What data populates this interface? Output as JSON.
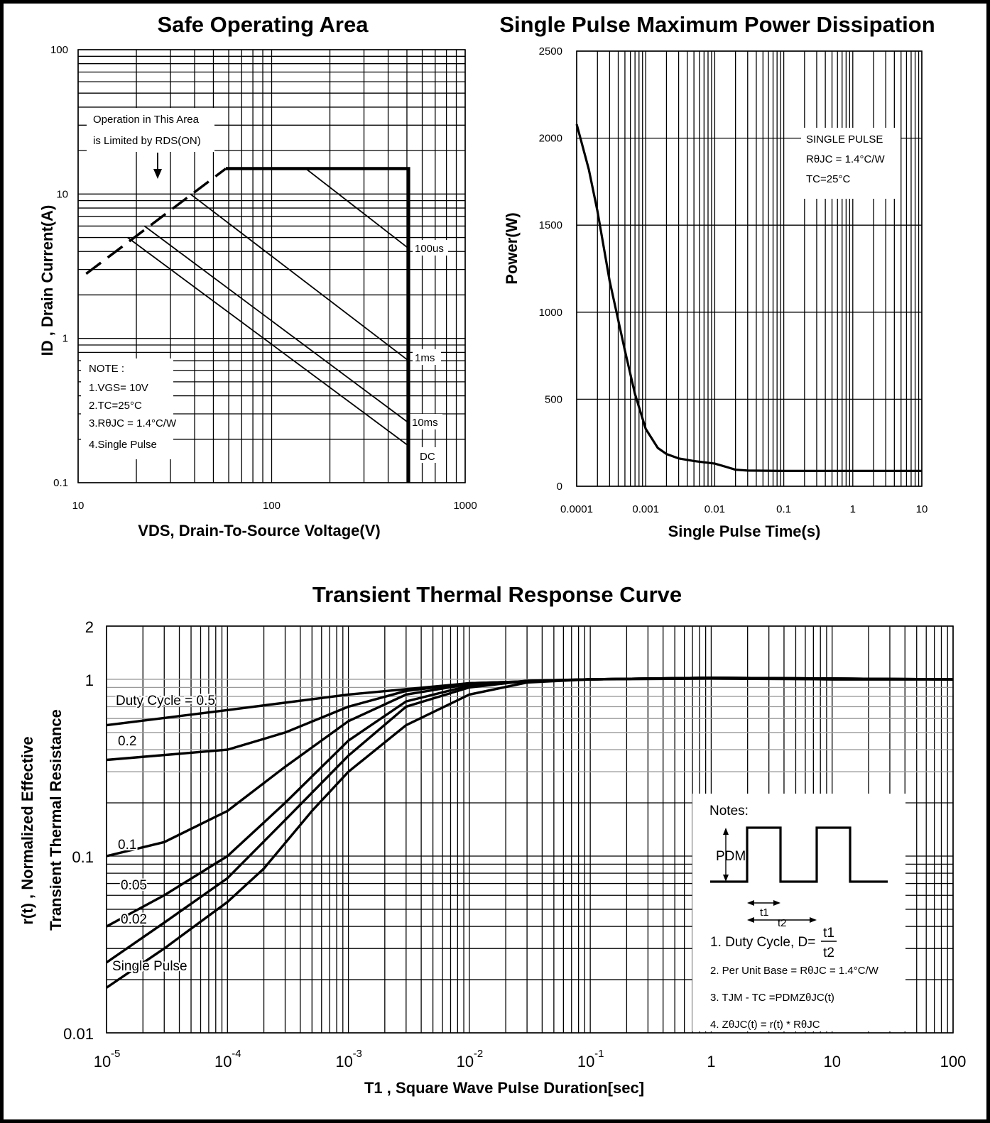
{
  "chart_data": [
    {
      "type": "line",
      "title": "Safe Operating Area",
      "xlabel": "VDS, Drain-To-Source Voltage(V)",
      "ylabel": "ID , Drain Current(A)",
      "xscale": "log",
      "yscale": "log",
      "xlim": [
        10,
        1000
      ],
      "ylim": [
        0.1,
        100
      ],
      "xticks": [
        "10",
        "100",
        "1000"
      ],
      "yticks": [
        "0.1",
        "1",
        "10",
        "100"
      ],
      "grid": true,
      "series": [
        {
          "name": "Operation in This Area is Limited by RDS(ON)",
          "style": "dashed",
          "x": [
            11,
            58
          ],
          "y": [
            2.8,
            15
          ]
        },
        {
          "name": "",
          "style": "bold",
          "x": [
            58,
            510,
            510
          ],
          "y": [
            15,
            15,
            0.1
          ]
        },
        {
          "name": "100us",
          "x": [
            150,
            510
          ],
          "y": [
            15,
            4.2
          ]
        },
        {
          "name": "1ms",
          "x": [
            38,
            510
          ],
          "y": [
            10.0,
            0.7
          ]
        },
        {
          "name": "10ms",
          "x": [
            22,
            510
          ],
          "y": [
            6.0,
            0.26
          ]
        },
        {
          "name": "DC",
          "x": [
            18,
            510
          ],
          "y": [
            5.0,
            0.18
          ]
        }
      ],
      "annotations": [
        "Operation in This Area",
        "is Limited by RDS(ON)",
        "100us",
        "1ms",
        "10ms",
        "DC",
        "NOTE :",
        "1.VGS= 10V",
        "2.TC=25°C",
        "3.RθJC = 1.4°C/W",
        "4.Single Pulse"
      ]
    },
    {
      "type": "line",
      "title": "Single Pulse Maximum Power Dissipation",
      "xlabel": "Single Pulse Time(s)",
      "ylabel": "Power(W)",
      "xscale": "log",
      "xlim": [
        0.0001,
        10
      ],
      "ylim": [
        0,
        2500
      ],
      "xticks": [
        "0.0001",
        "0.001",
        "0.01",
        "0.1",
        "1",
        "10"
      ],
      "yticks": [
        "0",
        "500",
        "1000",
        "1500",
        "2000",
        "2500"
      ],
      "grid": true,
      "series": [
        {
          "name": "",
          "x": [
            0.0001,
            0.00015,
            0.0002,
            0.0003,
            0.0005,
            0.0007,
            0.001,
            0.0015,
            0.002,
            0.003,
            0.005,
            0.008,
            0.01,
            0.015,
            0.02,
            0.03,
            0.1,
            1,
            10
          ],
          "y": [
            2080,
            1820,
            1580,
            1180,
            780,
            530,
            330,
            220,
            185,
            160,
            145,
            135,
            130,
            110,
            95,
            90,
            88,
            88,
            88
          ]
        }
      ],
      "annotations": [
        "SINGLE PULSE",
        "RθJC = 1.4°C/W",
        "TC=25°C"
      ]
    },
    {
      "type": "line",
      "title": "Transient Thermal Response Curve",
      "xlabel": "T1 , Square Wave Pulse Duration[sec]",
      "ylabel_lines": [
        "r(t) , Normalized Effective",
        "Transient Thermal Resistance"
      ],
      "xscale": "log",
      "yscale": "log",
      "xlim": [
        1e-05,
        100
      ],
      "ylim": [
        0.01,
        2
      ],
      "xticks": [
        "10",
        "10",
        "10",
        "10",
        "10",
        "1",
        "10",
        "100"
      ],
      "xtick_exponents": [
        "-5",
        "-4",
        "-3",
        "-2",
        "-1",
        "",
        "",
        ""
      ],
      "yticks": [
        "0.01",
        "0.1",
        "1",
        "2"
      ],
      "grid": true,
      "series": [
        {
          "name": "Duty Cycle = 0.5",
          "x": [
            1e-05,
            0.0001,
            0.001,
            0.01,
            0.1,
            1,
            10,
            100
          ],
          "y": [
            0.55,
            0.67,
            0.82,
            0.95,
            1.0,
            1.02,
            1.0,
            1.0
          ]
        },
        {
          "name": "0.2",
          "x": [
            1e-05,
            0.0001,
            0.0003,
            0.001,
            0.003,
            0.01,
            0.1,
            1,
            10,
            100
          ],
          "y": [
            0.35,
            0.4,
            0.5,
            0.7,
            0.86,
            0.95,
            1.0,
            1.01,
            1.0,
            1.0
          ]
        },
        {
          "name": "0.1",
          "x": [
            1e-05,
            3e-05,
            0.0001,
            0.0003,
            0.001,
            0.003,
            0.01,
            0.1,
            1,
            100
          ],
          "y": [
            0.1,
            0.12,
            0.18,
            0.32,
            0.58,
            0.82,
            0.94,
            1.0,
            1.02,
            1.0
          ]
        },
        {
          "name": "0.05",
          "x": [
            1e-05,
            3e-05,
            0.0001,
            0.0003,
            0.001,
            0.003,
            0.01,
            0.03,
            0.1,
            1,
            100
          ],
          "y": [
            0.04,
            0.06,
            0.1,
            0.2,
            0.45,
            0.75,
            0.92,
            0.98,
            1.0,
            1.02,
            1.0
          ]
        },
        {
          "name": "0.02",
          "x": [
            1e-05,
            3e-05,
            0.0001,
            0.0003,
            0.001,
            0.003,
            0.01,
            0.03,
            0.1,
            1,
            100
          ],
          "y": [
            0.025,
            0.042,
            0.075,
            0.16,
            0.37,
            0.7,
            0.9,
            0.98,
            1.0,
            1.02,
            1.0
          ]
        },
        {
          "name": "Single Pulse",
          "x": [
            1e-05,
            3e-05,
            0.0001,
            0.0002,
            0.0005,
            0.001,
            0.003,
            0.01,
            0.03,
            0.1,
            1,
            100
          ],
          "y": [
            0.018,
            0.03,
            0.055,
            0.085,
            0.18,
            0.3,
            0.55,
            0.82,
            0.96,
            1.0,
            1.02,
            1.0
          ]
        }
      ],
      "notes": {
        "heading": "Notes:",
        "pdm_label": "PDM",
        "t1_label": "t1",
        "t2_label": "t2",
        "item1": "1. Duty Cycle, D=",
        "frac_num": "t1",
        "frac_den": "t2",
        "item2": "2. Per Unit Base = RθJC = 1.4°C/W",
        "item3": "3. TJM - TC =PDMZθJC(t)",
        "item4": "4. ZθJC(t) = r(t) * RθJC"
      }
    }
  ]
}
